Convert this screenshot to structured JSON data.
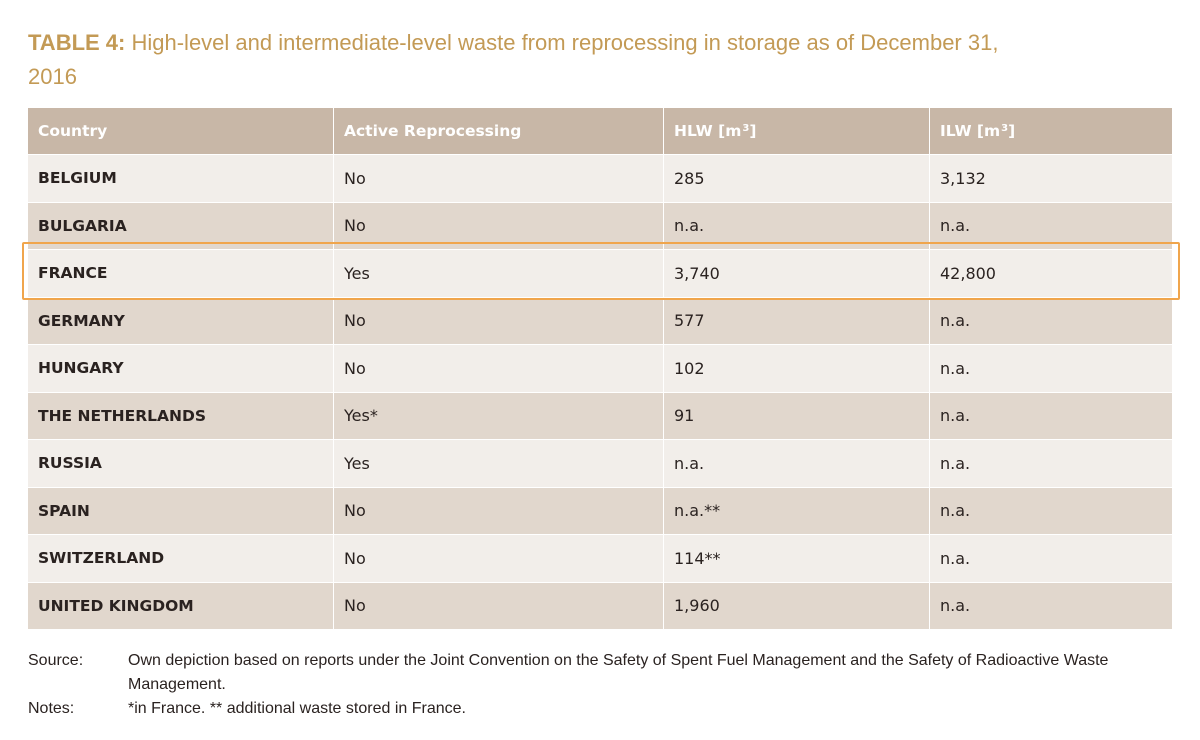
{
  "title": {
    "label": "TABLE 4:",
    "text": " High-level and intermediate-level waste from reprocessing in storage as of December 31, 2016"
  },
  "table": {
    "headers": {
      "country": "Country",
      "active": "Active Reprocessing",
      "hlw": "HLW [m",
      "hlw_sup": "3",
      "hlw_end": "]",
      "ilw": "ILW [m",
      "ilw_sup": "3",
      "ilw_end": "]"
    },
    "rows": [
      {
        "country": "BELGIUM",
        "active": "No",
        "hlw": "285",
        "ilw": "3,132"
      },
      {
        "country": "BULGARIA",
        "active": "No",
        "hlw": "n.a.",
        "ilw": "n.a."
      },
      {
        "country": "FRANCE",
        "active": "Yes",
        "hlw": "3,740",
        "ilw": "42,800"
      },
      {
        "country": "GERMANY",
        "active": "No",
        "hlw": "577",
        "ilw": "n.a."
      },
      {
        "country": "HUNGARY",
        "active": "No",
        "hlw": "102",
        "ilw": "n.a."
      },
      {
        "country": "THE NETHERLANDS",
        "active": "Yes*",
        "hlw": "91",
        "ilw": "n.a."
      },
      {
        "country": "RUSSIA",
        "active": "Yes",
        "hlw": "n.a.",
        "ilw": "n.a."
      },
      {
        "country": "SPAIN",
        "active": "No",
        "hlw": "n.a.**",
        "ilw": "n.a."
      },
      {
        "country": "SWITZERLAND",
        "active": "No",
        "hlw": "114**",
        "ilw": "n.a."
      },
      {
        "country": "UNITED KINGDOM",
        "active": "No",
        "hlw": "1,960",
        "ilw": "n.a."
      }
    ],
    "highlight_color": "#f0a54c"
  },
  "footer": {
    "source_label": "Source:",
    "source_text": "Own depiction based on reports under the Joint Convention on the Safety of Spent Fuel Management and the Safety of Radioactive Waste Management.",
    "notes_label": "Notes:",
    "notes_text": "*in France. ** additional waste stored in France."
  },
  "colors": {
    "title": "#c39a55",
    "header_bg": "#c8b7a7",
    "row_light": "#f2eeea",
    "row_dark": "#e1d7cd"
  }
}
